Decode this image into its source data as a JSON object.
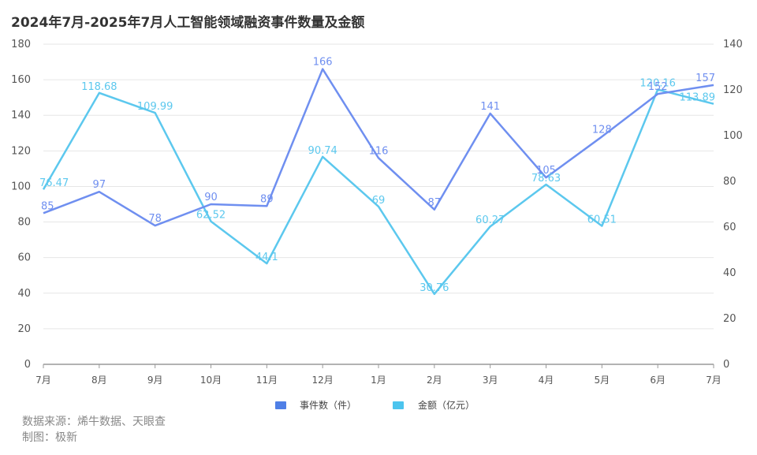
{
  "title": "2024年7月-2025年7月人工智能领域融资事件数量及金额",
  "footer": {
    "source": "数据来源：烯牛数据、天眼查",
    "maker": "制图：极新"
  },
  "colors": {
    "events": "#6f8ff0",
    "amount": "#5cc8ee",
    "events_legend": "#4f7fe6",
    "amount_legend": "#4cc4ee"
  },
  "chart_data": {
    "type": "line",
    "categories": [
      "7月",
      "8月",
      "9月",
      "10月",
      "11月",
      "12月",
      "1月",
      "2月",
      "3月",
      "4月",
      "5月",
      "6月",
      "7月"
    ],
    "series": [
      {
        "name": "事件数（件）",
        "axis": "left",
        "values": [
          85,
          97,
          78,
          90,
          89,
          166,
          116,
          87,
          141,
          105,
          128,
          152,
          157
        ]
      },
      {
        "name": "金额（亿元）",
        "axis": "right",
        "values": [
          76.47,
          118.68,
          109.99,
          62.52,
          44.1,
          90.74,
          69,
          30.76,
          60.27,
          78.63,
          60.51,
          120.16,
          113.89
        ]
      }
    ],
    "labels": {
      "events": [
        "85",
        "97",
        "78",
        "90",
        "89",
        "166",
        "116",
        "87",
        "141",
        "105",
        "128",
        "152",
        "157"
      ],
      "amount": [
        "76.47",
        "118.68",
        "109.99",
        "62.52",
        "44.1",
        "90.74",
        "69",
        "30.76",
        "60.27",
        "78.63",
        "60.51",
        "120.16",
        "113.89"
      ]
    },
    "y_left": {
      "min": 0,
      "max": 180,
      "ticks": [
        "0",
        "20",
        "40",
        "60",
        "80",
        "100",
        "120",
        "140",
        "160",
        "180"
      ]
    },
    "y_right": {
      "min": 0,
      "max": 140,
      "ticks": [
        "0",
        "20",
        "40",
        "60",
        "80",
        "100",
        "120",
        "140"
      ]
    },
    "grid": true,
    "legend_position": "bottom-center"
  }
}
